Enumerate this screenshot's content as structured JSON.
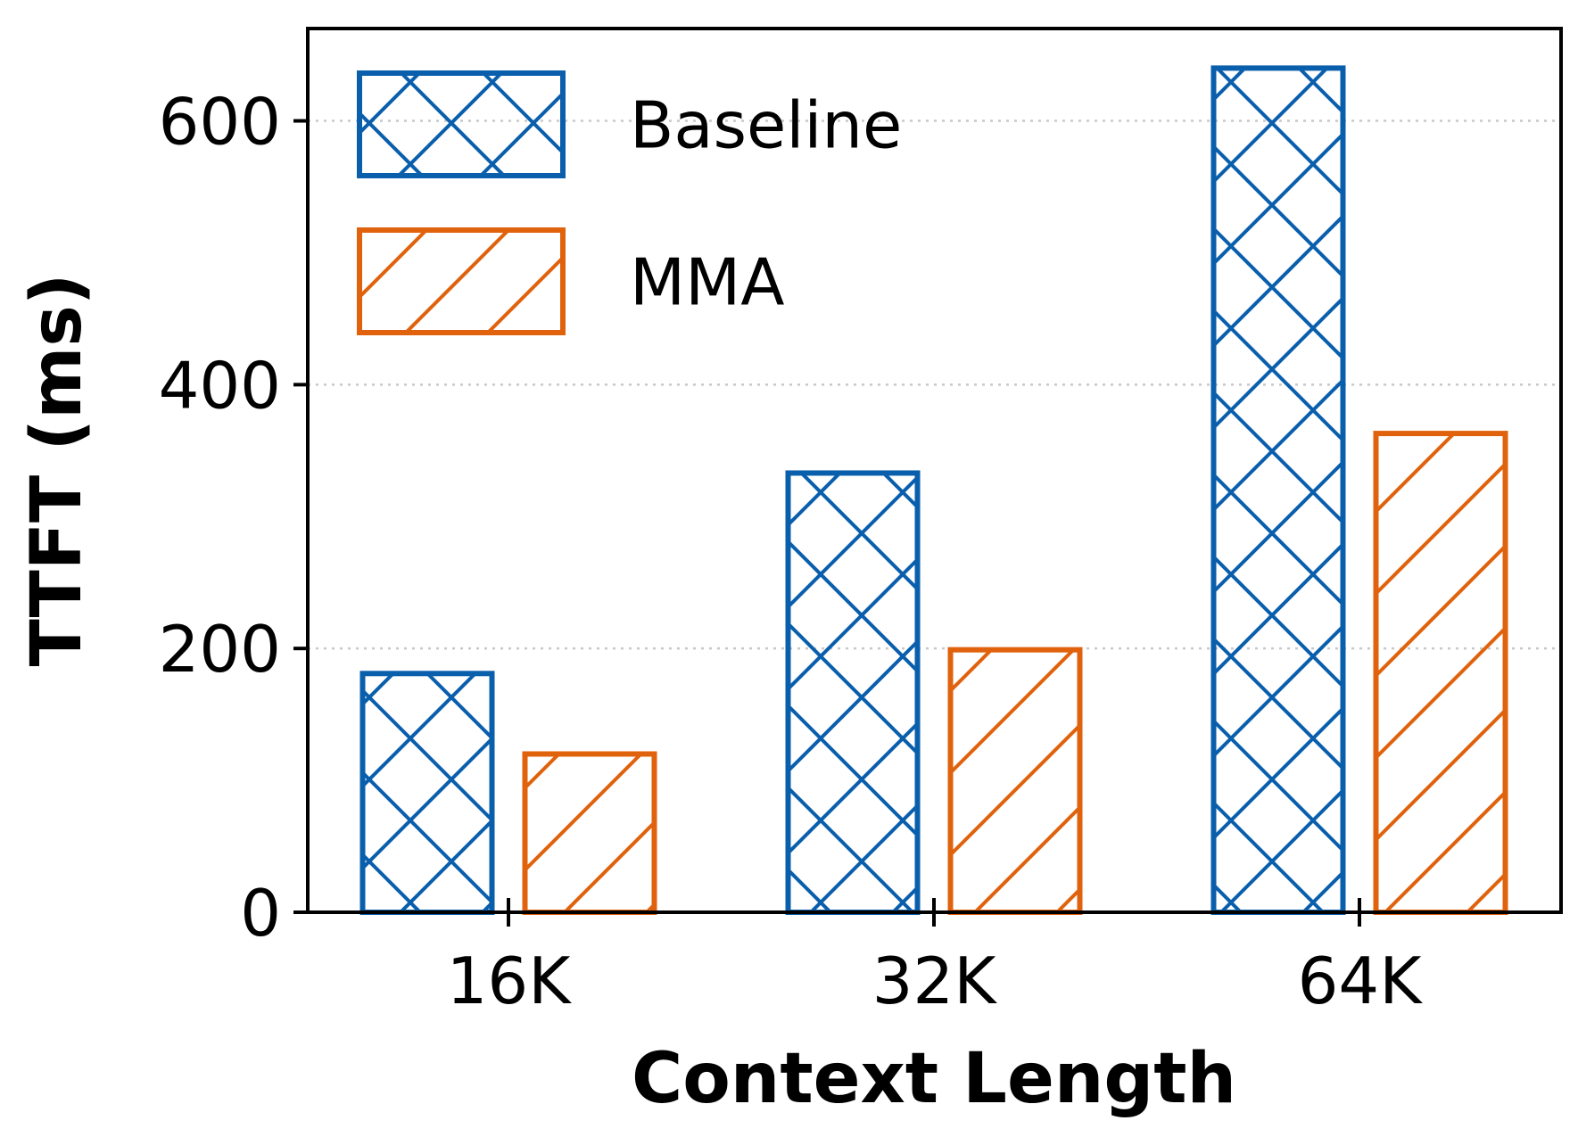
{
  "chart_data": {
    "type": "bar",
    "categories": [
      "16K",
      "32K",
      "64K"
    ],
    "series": [
      {
        "name": "Baseline",
        "values": [
          181,
          333,
          640
        ],
        "color": "#0a5fad",
        "hatch": "crosshatch"
      },
      {
        "name": "MMA",
        "values": [
          120,
          199,
          363
        ],
        "color": "#e0620d",
        "hatch": "diagonal"
      }
    ],
    "title": "",
    "xlabel": "Context Length",
    "ylabel": "TTFT (ms)",
    "ylim": [
      0,
      670
    ],
    "yticks": [
      0,
      200,
      400,
      600
    ],
    "grid": "y-dotted",
    "legend_position": "top-left"
  }
}
